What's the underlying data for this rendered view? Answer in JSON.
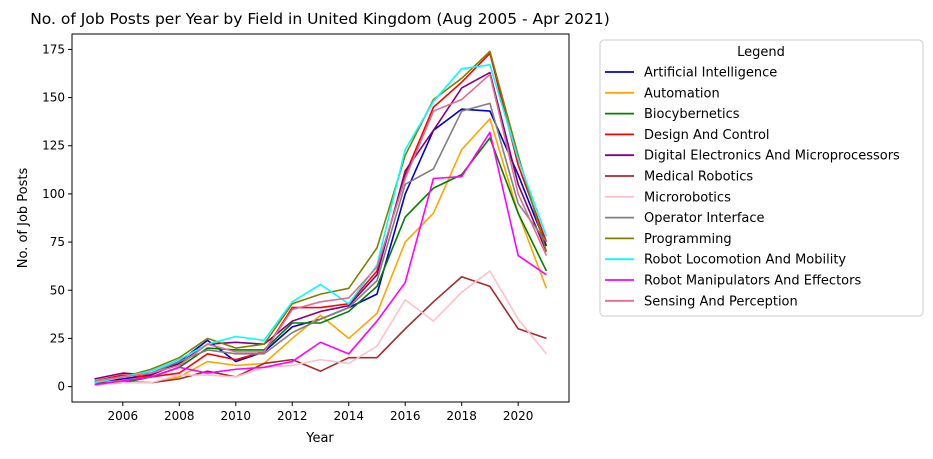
{
  "chart_data": {
    "type": "line",
    "title": "No. of Job Posts per Year by Field in United Kingdom (Aug 2005 - Apr 2021)",
    "xlabel": "Year",
    "ylabel": "No. of Job Posts",
    "xlim": [
      2004.2,
      2021.8
    ],
    "ylim": [
      -8,
      183
    ],
    "xticks": [
      2006,
      2008,
      2010,
      2012,
      2014,
      2016,
      2018,
      2020
    ],
    "yticks": [
      0,
      25,
      50,
      75,
      100,
      125,
      150,
      175
    ],
    "legend_title": "Legend",
    "legend_position": "outside-right",
    "grid": false,
    "x": [
      2005,
      2006,
      2007,
      2008,
      2009,
      2010,
      2011,
      2012,
      2013,
      2014,
      2015,
      2016,
      2017,
      2018,
      2019,
      2020,
      2021
    ],
    "series": [
      {
        "name": "Artificial Intelligence",
        "color": "#0000cd",
        "values": [
          2,
          4,
          6,
          13,
          24,
          13,
          18,
          31,
          35,
          41,
          48,
          100,
          133,
          144,
          143,
          110,
          73
        ]
      },
      {
        "name": "Automation",
        "color": "#ffa500",
        "values": [
          2,
          3,
          2,
          5,
          13,
          11,
          12,
          25,
          37,
          25,
          38,
          75,
          90,
          123,
          139,
          90,
          51
        ]
      },
      {
        "name": "Biocybernetics",
        "color": "#008000",
        "values": [
          1,
          2,
          5,
          10,
          20,
          19,
          19,
          33,
          33,
          39,
          52,
          88,
          103,
          110,
          129,
          90,
          60
        ]
      },
      {
        "name": "Design And Control",
        "color": "#ff0000",
        "values": [
          3,
          6,
          5,
          7,
          17,
          14,
          18,
          41,
          41,
          43,
          60,
          110,
          145,
          158,
          173,
          115,
          75
        ]
      },
      {
        "name": "Digital Electronics And Microprocessors",
        "color": "#800080",
        "values": [
          4,
          7,
          6,
          12,
          22,
          23,
          22,
          34,
          39,
          42,
          58,
          112,
          133,
          155,
          163,
          105,
          70
        ]
      },
      {
        "name": "Medical Robotics",
        "color": "#a52a2a",
        "values": [
          2,
          2,
          2,
          4,
          8,
          5,
          12,
          14,
          8,
          15,
          15,
          30,
          44,
          57,
          52,
          30,
          25
        ]
      },
      {
        "name": "Microrobotics",
        "color": "#ffc0cb",
        "values": [
          1,
          2,
          2,
          6,
          6,
          5,
          10,
          11,
          14,
          12,
          21,
          45,
          34,
          49,
          60,
          35,
          17
        ]
      },
      {
        "name": "Operator Interface",
        "color": "#808080",
        "values": [
          3,
          5,
          7,
          13,
          19,
          17,
          17,
          28,
          35,
          41,
          55,
          105,
          113,
          143,
          147,
          95,
          75
        ]
      },
      {
        "name": "Programming",
        "color": "#808000",
        "values": [
          2,
          5,
          9,
          15,
          25,
          20,
          22,
          43,
          48,
          51,
          72,
          120,
          149,
          160,
          174,
          120,
          70
        ]
      },
      {
        "name": "Robot Locomotion And Mobility",
        "color": "#00ffff",
        "values": [
          2,
          5,
          8,
          14,
          22,
          26,
          24,
          44,
          53,
          43,
          63,
          123,
          148,
          165,
          167,
          118,
          78
        ]
      },
      {
        "name": "Robot Manipulators And Effectors",
        "color": "#ff00ff",
        "values": [
          1,
          3,
          5,
          10,
          7,
          9,
          10,
          13,
          23,
          17,
          34,
          54,
          108,
          109,
          132,
          68,
          58
        ]
      },
      {
        "name": "Sensing And Perception",
        "color": "#db7093",
        "values": [
          3,
          5,
          7,
          11,
          22,
          18,
          18,
          40,
          44,
          46,
          62,
          108,
          143,
          149,
          162,
          100,
          68
        ]
      }
    ]
  }
}
